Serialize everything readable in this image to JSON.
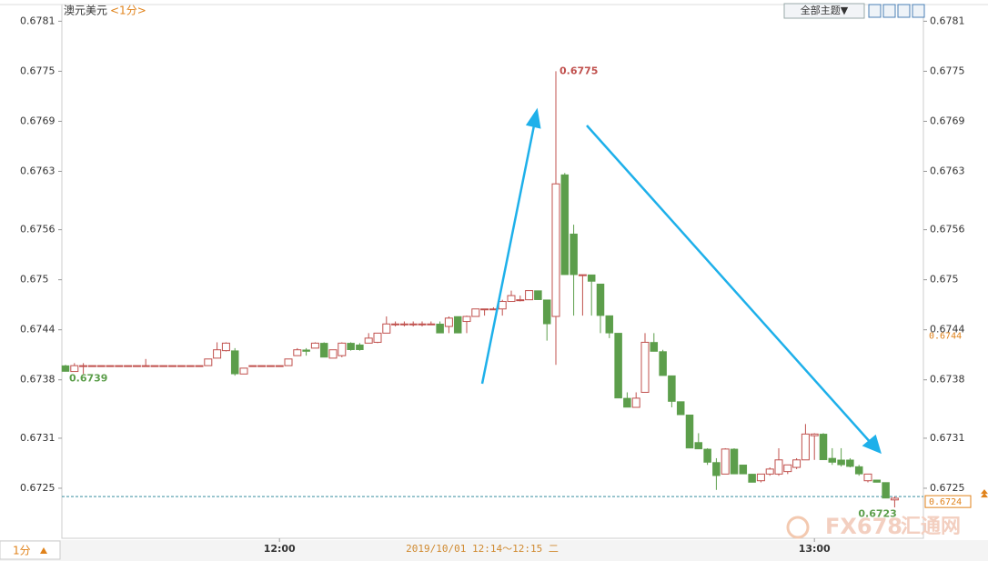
{
  "chart_data": {
    "type": "candlestick",
    "title": "澳元美元",
    "subtitle": "<1分>",
    "toolbar": "全部主题▼",
    "period_tab": "1分",
    "status": "2019/10/01 12:14～12:15 二",
    "watermark": [
      "FX678",
      "汇通网"
    ],
    "up_color": "#c0504d",
    "down_color": "#5c9e4b",
    "ylim": [
      0.6719,
      0.6783
    ],
    "yticks": [
      0.6781,
      0.6775,
      0.6769,
      0.6763,
      0.6756,
      0.675,
      0.6744,
      0.6738,
      0.6731,
      0.6725
    ],
    "price_labels": [
      0.6744,
      0.6724
    ],
    "point_labels": [
      0.6775,
      0.6739,
      0.6723
    ],
    "categories": [
      null,
      null,
      null,
      null,
      null,
      null,
      null,
      null,
      null,
      null,
      null,
      null,
      null,
      null,
      null,
      null,
      null,
      null,
      null,
      null,
      null,
      null,
      null,
      null,
      "12:00",
      null,
      null,
      null,
      null,
      null,
      null,
      null,
      null,
      null,
      null,
      null,
      null,
      null,
      null,
      null,
      null,
      null,
      null,
      null,
      null,
      null,
      null,
      null,
      null,
      null,
      null,
      null,
      null,
      null,
      null,
      null,
      null,
      null,
      null,
      null,
      null,
      null,
      null,
      null,
      null,
      null,
      null,
      null,
      null,
      null,
      null,
      null,
      null,
      null,
      null,
      null,
      null,
      null,
      null,
      null,
      null,
      null,
      null,
      null,
      "13:00",
      null,
      null,
      null,
      null,
      null,
      null,
      null,
      null,
      null
    ],
    "open": [
      0.67397,
      0.6739,
      0.67397,
      0.67397,
      0.67397,
      0.67397,
      0.67397,
      0.67397,
      0.67397,
      0.67397,
      0.67397,
      0.67397,
      0.67397,
      0.67397,
      0.67397,
      0.67397,
      0.67397,
      0.67406,
      0.67415,
      0.67415,
      0.67387,
      0.67397,
      0.67397,
      0.67397,
      0.67397,
      0.67397,
      0.67409,
      0.67416,
      0.67418,
      0.67424,
      0.67406,
      0.67409,
      0.67424,
      0.67422,
      0.67424,
      0.67425,
      0.67436,
      0.67447,
      0.67447,
      0.67447,
      0.67447,
      0.67447,
      0.67447,
      0.67444,
      0.67456,
      0.6745,
      0.67456,
      0.67465,
      0.67465,
      0.67465,
      0.67474,
      0.67476,
      0.67476,
      0.67487,
      0.67476,
      0.67456,
      0.67626,
      0.67555,
      0.67506,
      0.67506,
      0.67495,
      0.67457,
      0.67436,
      0.67358,
      0.67347,
      0.67365,
      0.67425,
      0.67414,
      0.67385,
      0.67354,
      0.67338,
      0.67305,
      0.67297,
      0.67281,
      0.67267,
      0.67297,
      0.67278,
      0.67267,
      0.67259,
      0.67267,
      0.67267,
      0.6727,
      0.67275,
      0.67284,
      0.67313,
      0.67315,
      0.67286,
      0.67284,
      0.67284,
      0.67276,
      0.67259,
      0.6726,
      0.67257,
      0.67236
    ],
    "high": [
      0.67398,
      0.674,
      0.674,
      0.67397,
      0.67397,
      0.67397,
      0.67397,
      0.67397,
      0.67397,
      0.67405,
      0.67397,
      0.67397,
      0.67397,
      0.67397,
      0.67397,
      0.67397,
      0.67405,
      0.67425,
      0.67425,
      0.67418,
      0.67394,
      0.67397,
      0.67397,
      0.67397,
      0.67397,
      0.67405,
      0.67418,
      0.67418,
      0.67425,
      0.67425,
      0.67416,
      0.67425,
      0.67425,
      0.67424,
      0.67436,
      0.67436,
      0.67456,
      0.6745,
      0.6745,
      0.6745,
      0.6745,
      0.6745,
      0.6745,
      0.67456,
      0.67456,
      0.67457,
      0.67465,
      0.67465,
      0.67467,
      0.67476,
      0.67487,
      0.67481,
      0.67487,
      0.67487,
      0.67476,
      0.6775,
      0.67628,
      0.67566,
      0.67506,
      0.67506,
      0.67495,
      0.67457,
      0.67436,
      0.67365,
      0.67365,
      0.67436,
      0.67436,
      0.67416,
      0.67385,
      0.67354,
      0.67338,
      0.67316,
      0.67298,
      0.67286,
      0.67298,
      0.67298,
      0.67278,
      0.67267,
      0.67267,
      0.67275,
      0.67298,
      0.67278,
      0.67286,
      0.67327,
      0.67316,
      0.67316,
      0.67298,
      0.67298,
      0.67286,
      0.67278,
      0.67267,
      0.6726,
      0.67257,
      0.6724
    ],
    "low": [
      0.6739,
      0.6739,
      0.67387,
      0.67397,
      0.67397,
      0.67397,
      0.67397,
      0.67397,
      0.67397,
      0.67397,
      0.67397,
      0.67397,
      0.67397,
      0.67397,
      0.67397,
      0.67397,
      0.67397,
      0.67406,
      0.67414,
      0.67385,
      0.67387,
      0.67397,
      0.67397,
      0.67397,
      0.67397,
      0.67397,
      0.67409,
      0.67409,
      0.67418,
      0.67407,
      0.67406,
      0.67407,
      0.67415,
      0.67415,
      0.67424,
      0.67424,
      0.67436,
      0.67444,
      0.67444,
      0.67444,
      0.67444,
      0.67447,
      0.67436,
      0.67436,
      0.67436,
      0.67436,
      0.67456,
      0.67457,
      0.67465,
      0.67457,
      0.67474,
      0.67474,
      0.67476,
      0.67476,
      0.67427,
      0.67398,
      0.67506,
      0.67457,
      0.67457,
      0.67457,
      0.67436,
      0.6743,
      0.67358,
      0.67347,
      0.67347,
      0.67365,
      0.67414,
      0.67385,
      0.67347,
      0.67338,
      0.67298,
      0.67297,
      0.67278,
      0.67248,
      0.67267,
      0.67267,
      0.67267,
      0.67257,
      0.67257,
      0.67265,
      0.67265,
      0.67267,
      0.67273,
      0.67284,
      0.67284,
      0.67284,
      0.67278,
      0.67276,
      0.67275,
      0.67265,
      0.67257,
      0.67257,
      0.67238,
      0.67227
    ],
    "close": [
      0.6739,
      0.67397,
      0.67397,
      0.67397,
      0.67397,
      0.67397,
      0.67397,
      0.67397,
      0.67397,
      0.67397,
      0.67397,
      0.67397,
      0.67397,
      0.67397,
      0.67397,
      0.67397,
      0.67405,
      0.67416,
      0.67424,
      0.67387,
      0.67394,
      0.67397,
      0.67397,
      0.67397,
      0.67397,
      0.67405,
      0.67416,
      0.67414,
      0.67424,
      0.67407,
      0.67416,
      0.67424,
      0.67416,
      0.67416,
      0.6743,
      0.67436,
      0.67447,
      0.67447,
      0.67447,
      0.67447,
      0.67447,
      0.67447,
      0.67436,
      0.67454,
      0.67436,
      0.67456,
      0.67465,
      0.67465,
      0.67465,
      0.67474,
      0.67481,
      0.67476,
      0.67487,
      0.67476,
      0.67447,
      0.67615,
      0.67506,
      0.67506,
      0.67506,
      0.67498,
      0.67457,
      0.67436,
      0.67358,
      0.67347,
      0.67358,
      0.67425,
      0.67414,
      0.67385,
      0.67354,
      0.67338,
      0.67298,
      0.67297,
      0.67281,
      0.67265,
      0.67297,
      0.67267,
      0.67267,
      0.67257,
      0.67267,
      0.67273,
      0.67284,
      0.67278,
      0.67284,
      0.67315,
      0.67315,
      0.67284,
      0.67281,
      0.67278,
      0.67276,
      0.67267,
      0.67267,
      0.67257,
      0.67238,
      0.67238
    ]
  }
}
